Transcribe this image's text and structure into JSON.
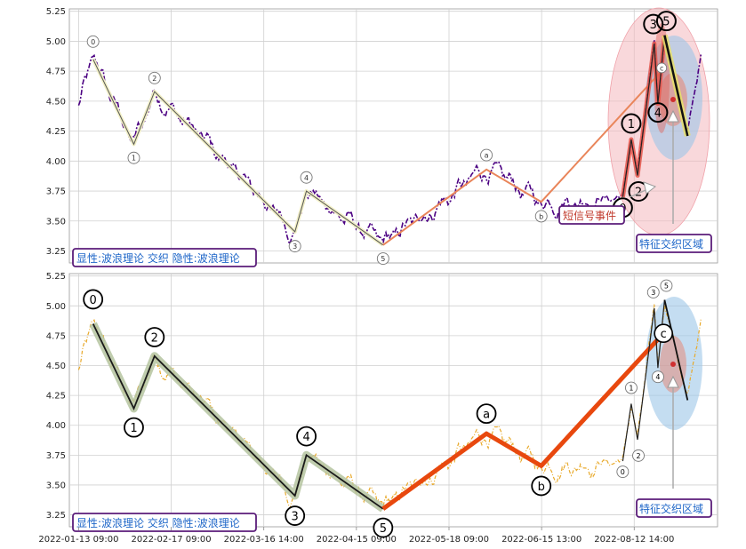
{
  "chart_data": [
    {
      "type": "line",
      "panel": "top",
      "ylim": [
        3.15,
        5.27
      ],
      "yticks": [
        "5.25",
        "5.00",
        "4.75",
        "4.50",
        "4.25",
        "4.00",
        "3.75",
        "3.50",
        "3.25"
      ],
      "grid": true,
      "wave_points": [
        {
          "label": "0",
          "t": 3.9,
          "v": 4.85
        },
        {
          "label": "1",
          "t": 14.9,
          "v": 4.14
        },
        {
          "label": "2",
          "t": 20.5,
          "v": 4.58
        },
        {
          "label": "3",
          "t": 58.4,
          "v": 3.41
        },
        {
          "label": "4",
          "t": 61.5,
          "v": 3.75
        },
        {
          "label": "5",
          "t": 82.2,
          "v": 3.3
        },
        {
          "label": "a",
          "t": 110.1,
          "v": 3.93
        },
        {
          "label": "b",
          "t": 124.9,
          "v": 3.66
        },
        {
          "label": "c",
          "t": 157.9,
          "v": 4.77
        }
      ],
      "sub_wave_points": [
        {
          "label": "0",
          "t": 146.9,
          "v": 3.7
        },
        {
          "label": "1",
          "t": 149.2,
          "v": 4.18
        },
        {
          "label": "2",
          "t": 150.9,
          "v": 3.88
        },
        {
          "label": "3",
          "t": 155.4,
          "v": 4.98
        },
        {
          "label": "4",
          "t": 156.4,
          "v": 4.48
        },
        {
          "label": "5",
          "t": 158.2,
          "v": 5.05
        }
      ],
      "trend_line": [
        {
          "t": 158.2,
          "v": 5.05
        },
        {
          "t": 164.4,
          "v": 4.21
        }
      ],
      "annotations": {
        "legend_text": "显性:波浪理论 交织 隐性:波浪理论",
        "signal_text": "短信号事件",
        "zone_text": "特征交织区域"
      },
      "colors": {
        "price": "#4b0082",
        "impulse": "#1a1a1a",
        "correction": "#e9855a",
        "zone": "#f4b8bd",
        "inner_zone": "#9cc7e8"
      }
    },
    {
      "type": "line",
      "panel": "bottom",
      "ylim": [
        3.15,
        5.27
      ],
      "yticks": [
        "5.25",
        "5.00",
        "4.75",
        "4.50",
        "4.25",
        "4.00",
        "3.75",
        "3.50",
        "3.25"
      ],
      "grid": true,
      "wave_points": [
        {
          "label": "0",
          "t": 3.9,
          "v": 4.85
        },
        {
          "label": "1",
          "t": 14.9,
          "v": 4.14
        },
        {
          "label": "2",
          "t": 20.5,
          "v": 4.58
        },
        {
          "label": "3",
          "t": 58.4,
          "v": 3.41
        },
        {
          "label": "4",
          "t": 61.5,
          "v": 3.75
        },
        {
          "label": "5",
          "t": 82.2,
          "v": 3.3
        },
        {
          "label": "a",
          "t": 110.1,
          "v": 3.93
        },
        {
          "label": "b",
          "t": 124.9,
          "v": 3.66
        },
        {
          "label": "c",
          "t": 157.9,
          "v": 4.77
        }
      ],
      "sub_wave_points": [
        {
          "label": "0",
          "t": 146.9,
          "v": 3.7
        },
        {
          "label": "1",
          "t": 149.2,
          "v": 4.18
        },
        {
          "label": "2",
          "t": 150.9,
          "v": 3.88
        },
        {
          "label": "3",
          "t": 155.4,
          "v": 4.98
        },
        {
          "label": "4",
          "t": 156.4,
          "v": 4.48
        },
        {
          "label": "5",
          "t": 158.2,
          "v": 5.05
        }
      ],
      "trend_line": [
        {
          "t": 158.2,
          "v": 5.05
        },
        {
          "t": 164.4,
          "v": 4.21
        }
      ],
      "annotations": {
        "legend_text": "显性:波浪理论 交织 隐性:波浪理论",
        "zone_text": "特征交织区域"
      },
      "colors": {
        "price": "#e8a92a",
        "impulse": "#1a1a1a",
        "impulse_halo": "#b5c4a0",
        "correction": "#e8480e",
        "inner_zone": "#9cc7e8"
      }
    }
  ],
  "x_axis": {
    "xlim": [
      -2.5,
      172.5
    ],
    "tick_t": [
      0,
      25,
      50,
      75,
      100,
      125,
      150
    ],
    "tick_labels": [
      "2022-01-13 09:00",
      "2022-02-17 09:00",
      "2022-03-16 14:00",
      "2022-04-15 09:00",
      "2022-05-18 09:00",
      "2022-06-15 13:00",
      "2022-08-12 14:00"
    ]
  },
  "price_series_t_range": [
    0,
    168
  ]
}
